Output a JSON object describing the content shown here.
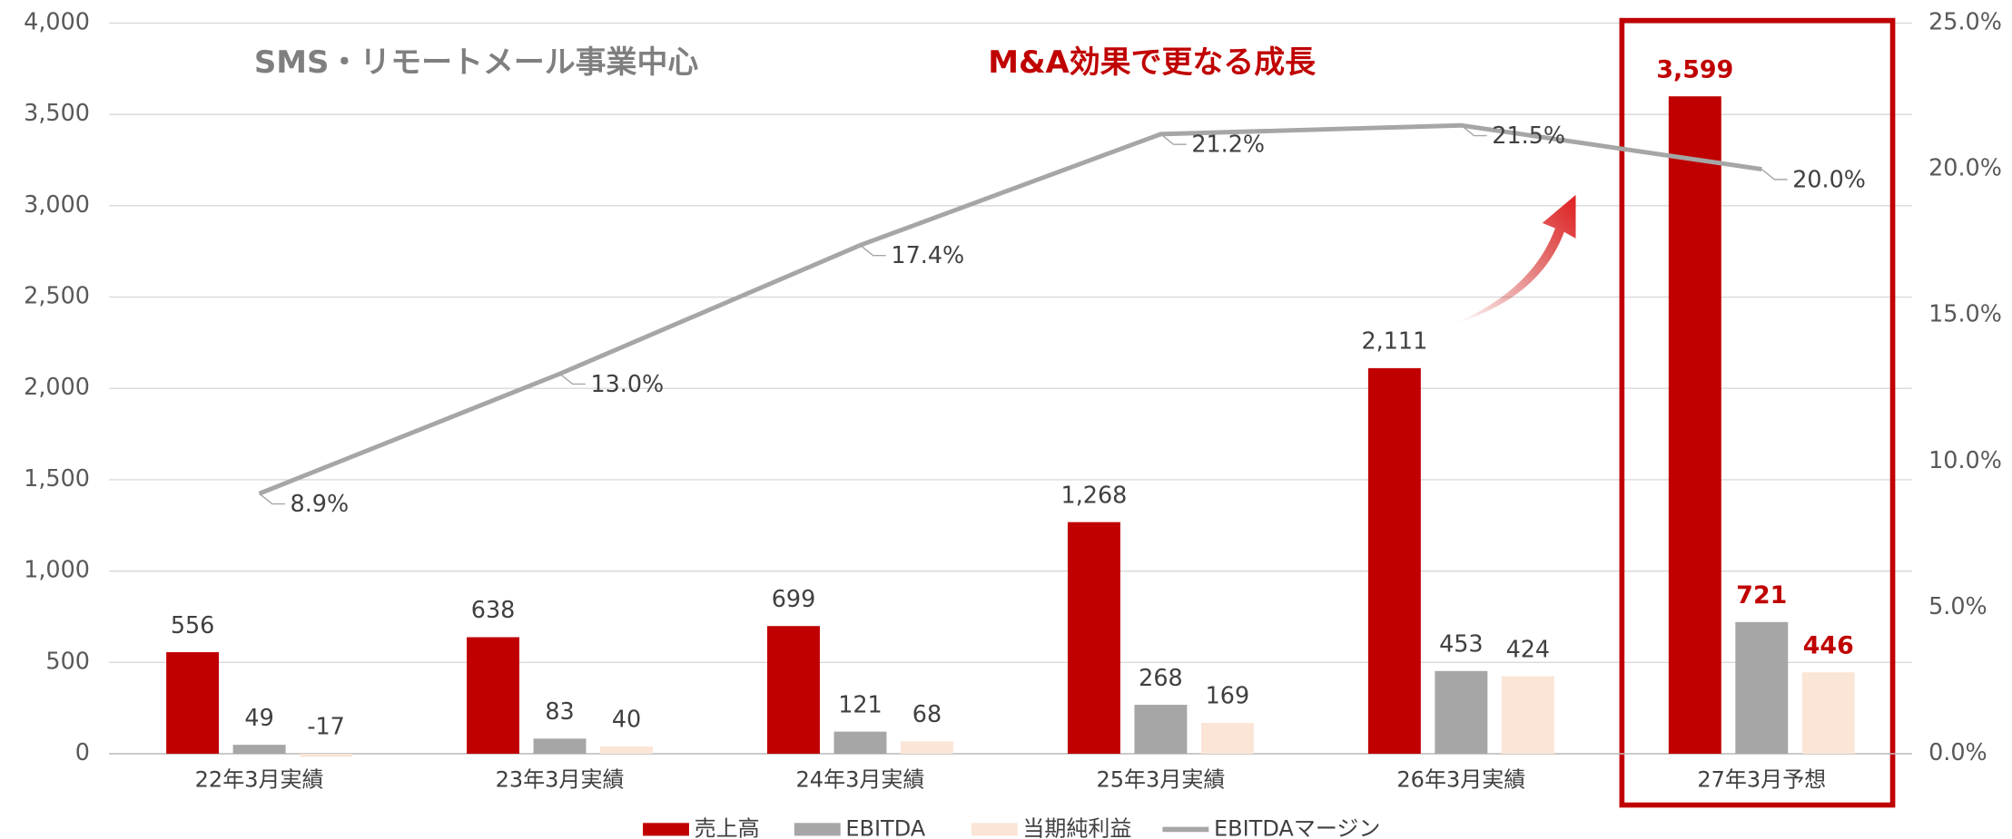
{
  "chart_data": {
    "type": "bar",
    "annotations": [
      "SMS・リモートメール事業中心",
      "M&A効果で更なる成長"
    ],
    "categories": [
      "22年3月実績",
      "23年3月実績",
      "24年3月実績",
      "25年3月実績",
      "26年3月実績",
      "27年3月予想"
    ],
    "series": [
      {
        "name": "売上高",
        "color": "#c00000",
        "values": [
          556,
          638,
          699,
          1268,
          2111,
          3599
        ],
        "value_labels": [
          "556",
          "638",
          "699",
          "1,268",
          "2,111",
          "3,599"
        ]
      },
      {
        "name": "EBITDA",
        "color": "#a6a6a6",
        "values": [
          49,
          83,
          121,
          268,
          453,
          721
        ]
      },
      {
        "name": "当期純利益",
        "color": "#fbe5d6",
        "values": [
          -17,
          40,
          68,
          169,
          424,
          446
        ]
      },
      {
        "name": "EBITDAマージン",
        "type": "line",
        "axis": "y2",
        "color": "#a6a6a6",
        "values": [
          8.9,
          13.0,
          17.4,
          21.2,
          21.5,
          20.0
        ],
        "value_labels": [
          "8.9%",
          "13.0%",
          "17.4%",
          "21.2%",
          "21.5%",
          "20.0%"
        ]
      }
    ],
    "ylim": [
      0,
      4000
    ],
    "yticks": [
      0,
      500,
      {
        "value": 1000,
        "label": "1,000"
      },
      {
        "value": 1500,
        "label": "1,500"
      },
      {
        "value": 2000,
        "label": "2,000"
      },
      {
        "value": 2500,
        "label": "2,500"
      },
      {
        "value": 3000,
        "label": "3,000"
      },
      {
        "value": 3500,
        "label": "3,500"
      },
      {
        "value": 4000,
        "label": "4,000"
      }
    ],
    "y2lim": [
      0,
      25
    ],
    "y2ticks": [
      {
        "value": 0,
        "label": "0.0%"
      },
      {
        "value": 5,
        "label": "5.0%"
      },
      {
        "value": 10,
        "label": "10.0%"
      },
      {
        "value": 15,
        "label": "15.0%"
      },
      {
        "value": 20,
        "label": "20.0%"
      },
      {
        "value": 25,
        "label": "25.0%"
      }
    ],
    "grid": true,
    "legend": "bottom"
  }
}
